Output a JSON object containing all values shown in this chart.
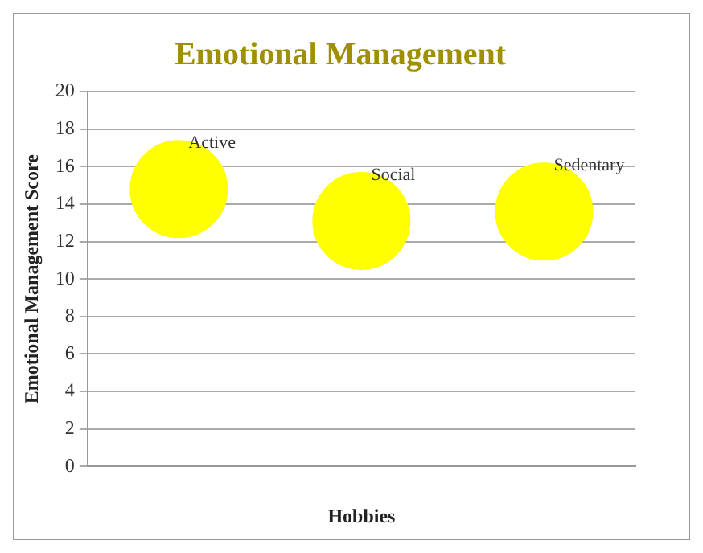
{
  "chart_data": {
    "type": "bubble",
    "title": "Emotional Management",
    "xlabel": "Hobbies",
    "ylabel": "Emotional Management Score",
    "categories": [
      null,
      null,
      null
    ],
    "series": [
      {
        "name": "Active",
        "color": "#ffff00",
        "values": [
          14.8,
          null,
          null
        ],
        "sizes": [
          1,
          null,
          null
        ]
      },
      {
        "name": "Social",
        "color": "#ffff00",
        "values": [
          null,
          13.1,
          null
        ],
        "sizes": [
          null,
          1,
          null
        ]
      },
      {
        "name": "Sedentary",
        "color": "#ffff00",
        "values": [
          null,
          null,
          13.6
        ],
        "sizes": [
          null,
          null,
          1
        ]
      }
    ],
    "ylim": [
      0,
      20
    ],
    "yticks": [
      0,
      2,
      4,
      6,
      8,
      10,
      12,
      14,
      16,
      18,
      20
    ],
    "grid": "y",
    "legend": false
  }
}
